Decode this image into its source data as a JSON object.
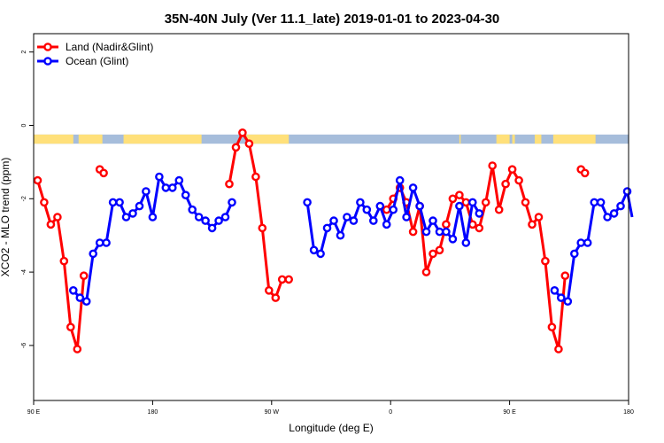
{
  "chart_data": {
    "type": "line",
    "title": "35N-40N July (Ver 11.1_late)   2019-01-01 to 2023-04-30",
    "xlabel": "Longitude (deg E)",
    "ylabel": "XCO2 - MLO trend (ppm)",
    "xlim": [
      90,
      540
    ],
    "ylim": [
      -7.5,
      2.5
    ],
    "x_ticks": [
      {
        "value": 90,
        "label": "90 E"
      },
      {
        "value": 180,
        "label": "180"
      },
      {
        "value": 270,
        "label": "90 W"
      },
      {
        "value": 360,
        "label": "0"
      },
      {
        "value": 450,
        "label": "90 E"
      },
      {
        "value": 540,
        "label": "180"
      }
    ],
    "y_ticks": [
      {
        "value": 2,
        "label": "2"
      },
      {
        "value": 0,
        "label": "0"
      },
      {
        "value": -2,
        "label": "-2"
      },
      {
        "value": -4,
        "label": "-4"
      },
      {
        "value": -6,
        "label": "-6"
      }
    ],
    "legend_position": "top-left",
    "surface_strip": {
      "y_range": [
        -0.5,
        -0.25
      ],
      "land_color": "#ffe07a",
      "ocean_color": "#a6bddb",
      "land_segments": [
        [
          90,
          120
        ],
        [
          124,
          142
        ],
        [
          158,
          217
        ],
        [
          251,
          283
        ],
        [
          412,
          413
        ],
        [
          440,
          450
        ],
        [
          452,
          454
        ],
        [
          469,
          474
        ],
        [
          483,
          515
        ]
      ]
    },
    "series": [
      {
        "name": "Land (Nadir&Glint)",
        "color": "#ff0000",
        "points": [
          [
            93,
            -1.5
          ],
          [
            98,
            -2.1
          ],
          [
            103,
            -2.7
          ],
          [
            108,
            -2.5
          ],
          [
            113,
            -3.7
          ],
          [
            118,
            -5.5
          ],
          [
            123,
            -6.1
          ],
          [
            128,
            -4.1
          ],
          [
            null,
            null
          ],
          [
            140,
            -1.2
          ],
          [
            143,
            -1.3
          ],
          [
            null,
            null
          ],
          [
            238,
            -1.6
          ],
          [
            243,
            -0.6
          ],
          [
            248,
            -0.2
          ],
          [
            253,
            -0.5
          ],
          [
            258,
            -1.4
          ],
          [
            263,
            -2.8
          ],
          [
            268,
            -4.5
          ],
          [
            273,
            -4.7
          ],
          [
            278,
            -4.2
          ],
          [
            283,
            -4.2
          ],
          [
            null,
            null
          ],
          [
            357,
            -2.3
          ],
          [
            362,
            -2.0
          ],
          [
            367,
            -1.7
          ],
          [
            372,
            -2.1
          ],
          [
            377,
            -2.9
          ],
          [
            382,
            -2.2
          ],
          [
            387,
            -4.0
          ],
          [
            392,
            -3.5
          ],
          [
            397,
            -3.4
          ],
          [
            402,
            -2.7
          ],
          [
            407,
            -2.0
          ],
          [
            412,
            -1.9
          ],
          [
            417,
            -2.1
          ],
          [
            422,
            -2.7
          ],
          [
            427,
            -2.8
          ],
          [
            432,
            -2.1
          ],
          [
            437,
            -1.1
          ],
          [
            442,
            -2.3
          ],
          [
            447,
            -1.6
          ],
          [
            452,
            -1.2
          ],
          [
            457,
            -1.5
          ],
          [
            462,
            -2.1
          ],
          [
            467,
            -2.7
          ],
          [
            472,
            -2.5
          ],
          [
            477,
            -3.7
          ],
          [
            482,
            -5.5
          ],
          [
            487,
            -6.1
          ],
          [
            492,
            -4.1
          ],
          [
            null,
            null
          ],
          [
            504,
            -1.2
          ],
          [
            507,
            -1.3
          ]
        ]
      },
      {
        "name": "Ocean (Glint)",
        "color": "#0000ff",
        "points": [
          [
            120,
            -4.5
          ],
          [
            125,
            -4.7
          ],
          [
            130,
            -4.8
          ],
          [
            135,
            -3.5
          ],
          [
            140,
            -3.2
          ],
          [
            145,
            -3.2
          ],
          [
            150,
            -2.1
          ],
          [
            155,
            -2.1
          ],
          [
            160,
            -2.5
          ],
          [
            165,
            -2.4
          ],
          [
            170,
            -2.2
          ],
          [
            175,
            -1.8
          ],
          [
            180,
            -2.5
          ],
          [
            185,
            -1.4
          ],
          [
            190,
            -1.7
          ],
          [
            195,
            -1.7
          ],
          [
            200,
            -1.5
          ],
          [
            205,
            -1.9
          ],
          [
            210,
            -2.3
          ],
          [
            215,
            -2.5
          ],
          [
            220,
            -2.6
          ],
          [
            225,
            -2.8
          ],
          [
            230,
            -2.6
          ],
          [
            235,
            -2.5
          ],
          [
            240,
            -2.1
          ],
          [
            null,
            null
          ],
          [
            297,
            -2.1
          ],
          [
            302,
            -3.4
          ],
          [
            307,
            -3.5
          ],
          [
            312,
            -2.8
          ],
          [
            317,
            -2.6
          ],
          [
            322,
            -3.0
          ],
          [
            327,
            -2.5
          ],
          [
            332,
            -2.6
          ],
          [
            337,
            -2.1
          ],
          [
            342,
            -2.3
          ],
          [
            347,
            -2.6
          ],
          [
            352,
            -2.2
          ],
          [
            357,
            -2.7
          ],
          [
            362,
            -2.3
          ],
          [
            367,
            -1.5
          ],
          [
            372,
            -2.5
          ],
          [
            377,
            -1.7
          ],
          [
            382,
            -2.2
          ],
          [
            387,
            -2.9
          ],
          [
            392,
            -2.6
          ],
          [
            397,
            -2.9
          ],
          [
            402,
            -2.9
          ],
          [
            407,
            -3.1
          ],
          [
            412,
            -2.2
          ],
          [
            417,
            -3.2
          ],
          [
            422,
            -2.1
          ],
          [
            427,
            -2.4
          ],
          [
            null,
            null
          ],
          [
            484,
            -4.5
          ],
          [
            489,
            -4.7
          ],
          [
            494,
            -4.8
          ],
          [
            499,
            -3.5
          ],
          [
            504,
            -3.2
          ],
          [
            509,
            -3.2
          ],
          [
            514,
            -2.1
          ],
          [
            519,
            -2.1
          ],
          [
            524,
            -2.5
          ],
          [
            529,
            -2.4
          ],
          [
            534,
            -2.2
          ],
          [
            539,
            -1.8
          ],
          [
            544,
            -2.5
          ]
        ]
      }
    ]
  }
}
